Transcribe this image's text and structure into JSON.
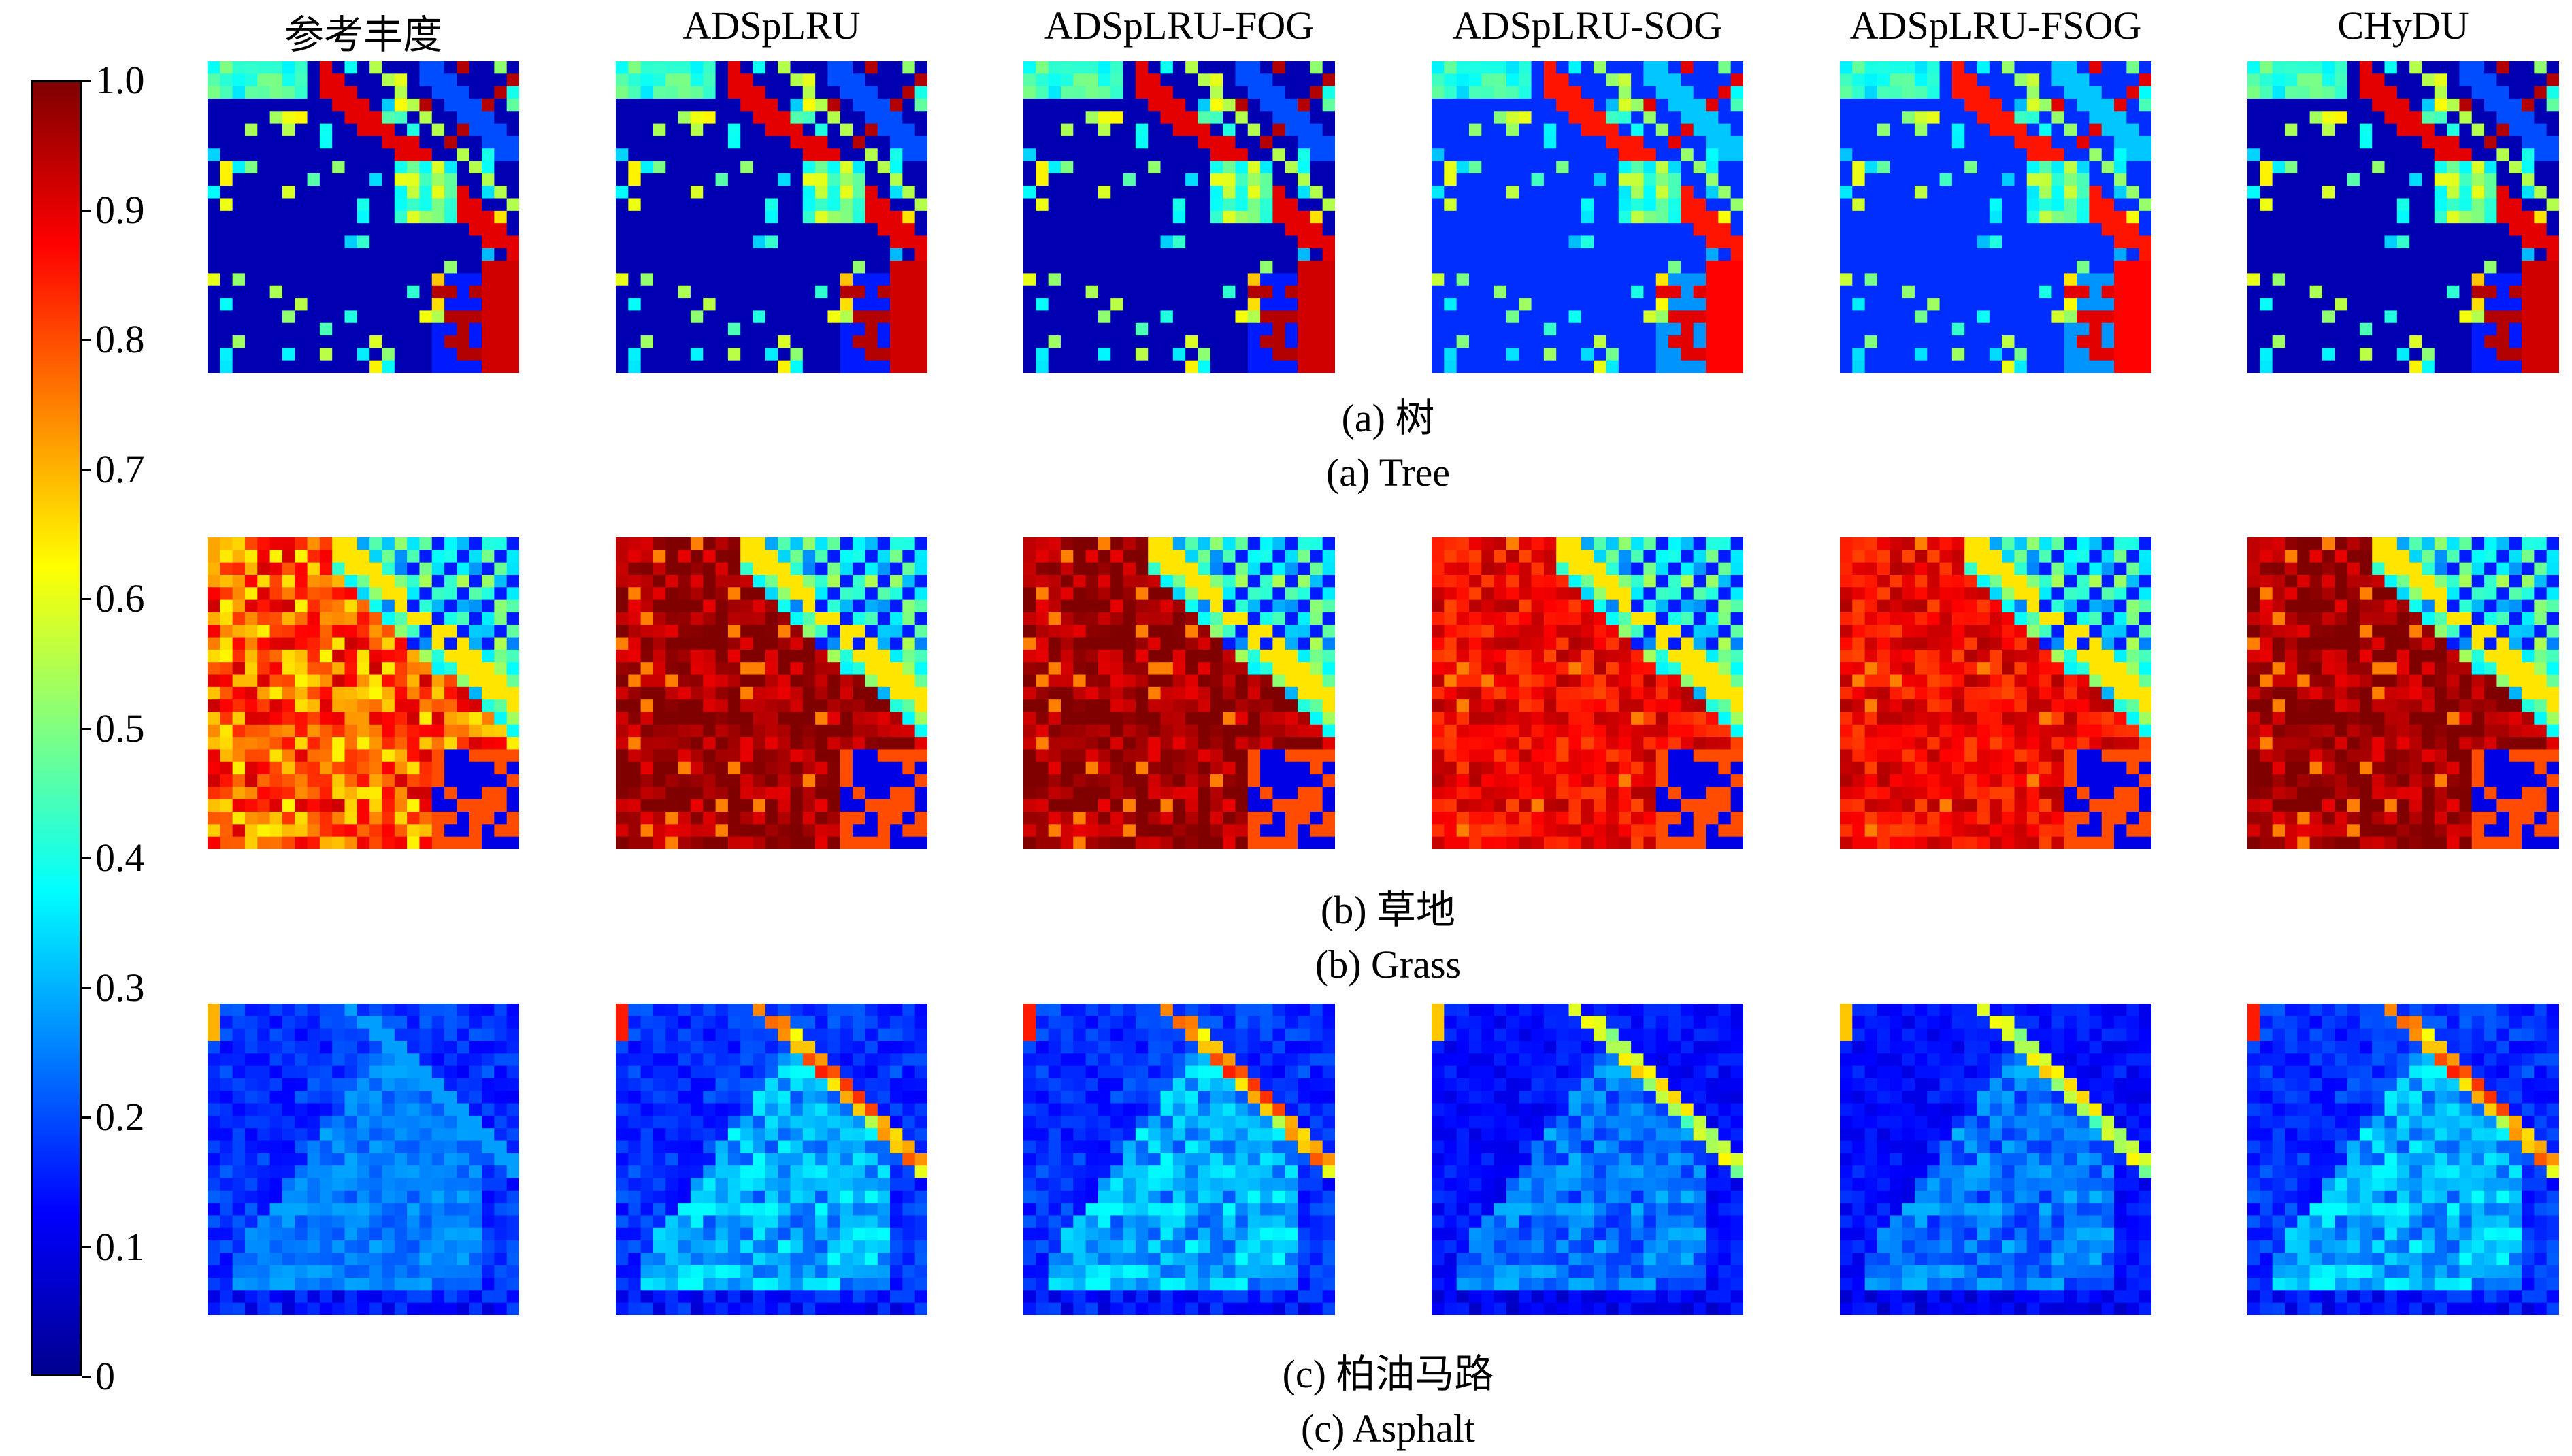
{
  "chart_data": {
    "type": "heatmap",
    "columns": [
      "参考丰度",
      "ADSpLRU",
      "ADSpLRU-FOG",
      "ADSpLRU-SOG",
      "ADSpLRU-FSOG",
      "CHyDU"
    ],
    "rows": [
      {
        "caption_cn": "(a) 树",
        "caption_en": "(a) Tree"
      },
      {
        "caption_cn": "(b) 草地",
        "caption_en": "(b) Grass"
      },
      {
        "caption_cn": "(c) 柏油马路",
        "caption_en": "(c) Asphalt"
      }
    ],
    "colorbar": {
      "colormap": "jet",
      "range": [
        0,
        1.0
      ],
      "tick_labels": [
        "0",
        "0.1",
        "0.2",
        "0.3",
        "0.4",
        "0.5",
        "0.6",
        "0.7",
        "0.8",
        "0.9",
        "1.0"
      ],
      "position": "left"
    },
    "map_grid": 25
  }
}
